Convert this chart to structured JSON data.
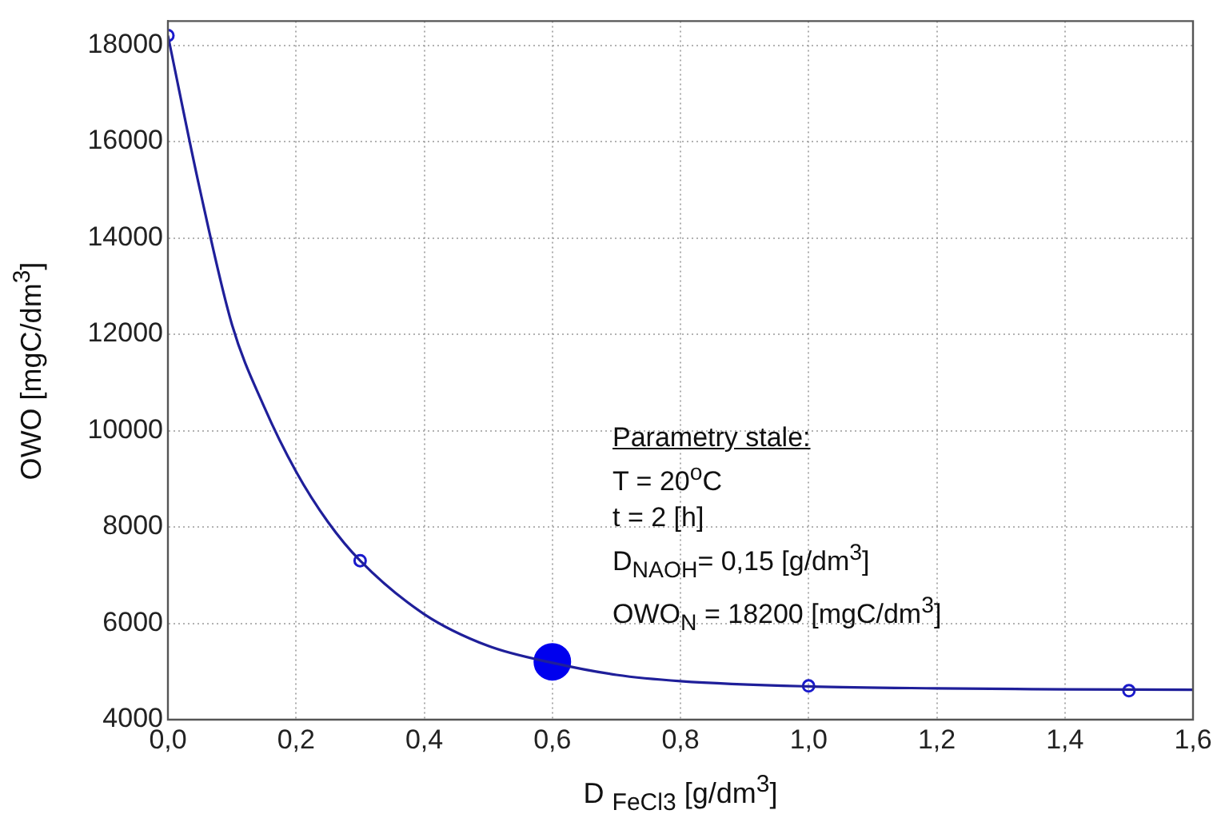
{
  "chart_data": {
    "type": "scatter",
    "xlabel": "D $_{FeCl3}$ [g/dm$^{3}$]",
    "ylabel": "OWO [mgC/dm$^{3}$]",
    "xlim": [
      0,
      1.6
    ],
    "xticks": [
      {
        "value": 0,
        "label": "0,0"
      },
      {
        "value": 0.2,
        "label": "0,2"
      },
      {
        "value": 0.4,
        "label": "0,4"
      },
      {
        "value": 0.6,
        "label": "0,6"
      },
      {
        "value": 0.8,
        "label": "0,8"
      },
      {
        "value": 1.0,
        "label": "1,0"
      },
      {
        "value": 1.2,
        "label": "1,2"
      },
      {
        "value": 1.4,
        "label": "1,4"
      },
      {
        "value": 1.6,
        "label": "1,6"
      }
    ],
    "ylim": [
      4000,
      18500
    ],
    "yticks": [
      4000,
      6000,
      8000,
      10000,
      12000,
      14000,
      16000,
      18000
    ],
    "grid": true,
    "legend": false,
    "marker": "circle",
    "series": [
      {
        "type": "line",
        "color": "#1f1f9a",
        "marker": "none",
        "x": [
          0,
          0.05,
          0.1,
          0.15,
          0.2,
          0.25,
          0.3,
          0.4,
          0.5,
          0.6,
          0.7,
          0.8,
          1.0,
          1.2,
          1.4,
          1.6
        ],
        "values": [
          18200,
          15000,
          12200,
          10500,
          9150,
          8100,
          7300,
          6190,
          5530,
          5180,
          4930,
          4800,
          4690,
          4650,
          4630,
          4620
        ]
      },
      {
        "type": "scatter",
        "color": "#1a1acc",
        "x": [
          0,
          0.3,
          1.0,
          1.5
        ],
        "values": [
          18200,
          7300,
          4700,
          4600
        ]
      },
      {
        "type": "scatter",
        "color": "#0000ee",
        "x": [
          0.6
        ],
        "values": [
          5200
        ]
      }
    ],
    "annotations": [
      "Parametry stale:",
      "T = 20$^{o}$C",
      "t = 2 [h]",
      "D$_{NAOH}$= 0,15 [g/dm$^{3}$]",
      "OWO$_{N}$ = 18200 [mgC/dm$^{3}$]"
    ]
  }
}
